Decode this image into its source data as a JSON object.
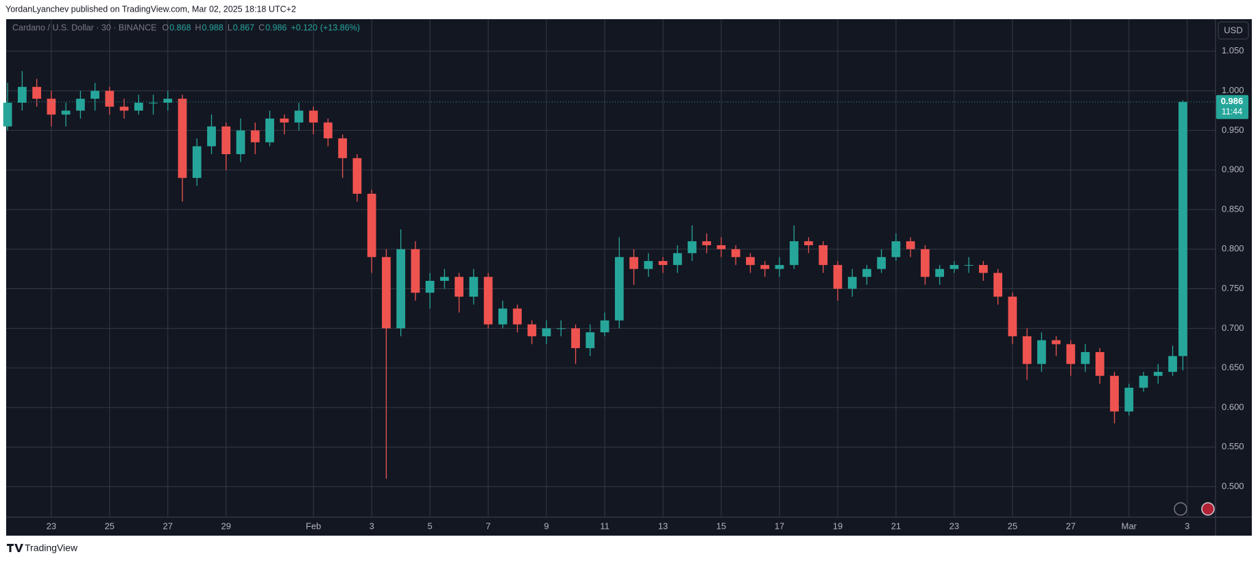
{
  "header": {
    "published": "YordanLyanchev published on TradingView.com, Mar 02, 2025 18:18 UTC+2",
    "footer": "TradingView"
  },
  "chart_data": {
    "type": "candlestick",
    "legend": {
      "symbol": "Cardano / U.S. Dollar · 30 · BINANCE",
      "items": [
        {
          "key": "O",
          "value": 0.868
        },
        {
          "key": "H",
          "value": 0.988
        },
        {
          "key": "L",
          "value": 0.867
        },
        {
          "key": "C",
          "value": 0.986
        }
      ],
      "change": "+0.120",
      "change_pct": "(+13.86%)"
    },
    "currency": "USD",
    "last_price": 0.986,
    "countdown": "11:44",
    "up_color": "#26a69a",
    "down_color": "#ef5350",
    "grid": true,
    "x": [
      -1.5,
      -1,
      -0.5,
      0,
      0.5,
      1,
      1.5,
      2,
      2.5,
      3,
      3.5,
      4,
      4.5,
      5,
      5.5,
      6,
      6.5,
      7,
      7.5,
      8,
      8.5,
      9,
      9.5,
      10,
      10.5,
      11,
      11.5,
      12,
      12.5,
      13,
      13.5,
      14,
      14.5,
      15,
      15.5,
      16,
      16.5,
      17,
      17.5,
      18,
      18.5,
      19,
      19.5,
      20,
      20.5,
      21,
      21.5,
      22,
      22.5,
      23,
      23.5,
      24,
      24.5,
      25,
      25.5,
      26,
      26.5,
      27,
      27.5,
      28,
      28.5,
      29,
      29.5,
      30,
      30.5,
      31,
      31.5,
      32,
      32.5,
      33,
      33.5,
      34,
      34.5,
      35,
      35.5,
      36,
      36.5,
      37,
      37.5,
      38,
      38.5,
      38.85
    ],
    "open": [
      0.955,
      0.985,
      1.005,
      0.99,
      0.97,
      0.975,
      0.99,
      1.0,
      0.98,
      0.975,
      0.985,
      0.985,
      0.99,
      0.89,
      0.93,
      0.955,
      0.92,
      0.95,
      0.935,
      0.965,
      0.96,
      0.975,
      0.96,
      0.94,
      0.915,
      0.87,
      0.79,
      0.7,
      0.8,
      0.745,
      0.76,
      0.765,
      0.74,
      0.765,
      0.705,
      0.725,
      0.705,
      0.69,
      0.7,
      0.7,
      0.675,
      0.695,
      0.71,
      0.79,
      0.775,
      0.785,
      0.78,
      0.795,
      0.81,
      0.805,
      0.8,
      0.79,
      0.78,
      0.775,
      0.78,
      0.81,
      0.805,
      0.78,
      0.75,
      0.765,
      0.775,
      0.79,
      0.81,
      0.8,
      0.765,
      0.775,
      0.78,
      0.78,
      0.77,
      0.74,
      0.69,
      0.655,
      0.685,
      0.68,
      0.655,
      0.67,
      0.64,
      0.595,
      0.625,
      0.64,
      0.645,
      0.665
    ],
    "high": [
      1.01,
      1.025,
      1.015,
      1.0,
      0.985,
      1.0,
      1.01,
      1.005,
      0.99,
      0.995,
      0.995,
      1.0,
      0.995,
      0.94,
      0.97,
      0.96,
      0.965,
      0.96,
      0.975,
      0.97,
      0.985,
      0.98,
      0.965,
      0.945,
      0.92,
      0.875,
      0.8,
      0.825,
      0.81,
      0.77,
      0.775,
      0.77,
      0.775,
      0.77,
      0.735,
      0.73,
      0.71,
      0.71,
      0.71,
      0.705,
      0.705,
      0.72,
      0.815,
      0.8,
      0.795,
      0.79,
      0.805,
      0.83,
      0.82,
      0.815,
      0.805,
      0.795,
      0.785,
      0.79,
      0.83,
      0.815,
      0.81,
      0.785,
      0.775,
      0.78,
      0.8,
      0.82,
      0.815,
      0.805,
      0.78,
      0.785,
      0.79,
      0.785,
      0.775,
      0.745,
      0.7,
      0.695,
      0.69,
      0.685,
      0.68,
      0.675,
      0.645,
      0.63,
      0.645,
      0.655,
      0.678,
      0.988
    ],
    "low": [
      0.95,
      0.975,
      0.98,
      0.955,
      0.955,
      0.965,
      0.975,
      0.97,
      0.965,
      0.97,
      0.97,
      0.975,
      0.86,
      0.88,
      0.92,
      0.9,
      0.91,
      0.92,
      0.93,
      0.945,
      0.95,
      0.945,
      0.93,
      0.89,
      0.86,
      0.77,
      0.51,
      0.69,
      0.735,
      0.725,
      0.75,
      0.72,
      0.73,
      0.7,
      0.7,
      0.695,
      0.68,
      0.68,
      0.69,
      0.655,
      0.665,
      0.69,
      0.7,
      0.755,
      0.765,
      0.77,
      0.77,
      0.785,
      0.795,
      0.79,
      0.78,
      0.77,
      0.765,
      0.765,
      0.775,
      0.795,
      0.77,
      0.735,
      0.74,
      0.755,
      0.77,
      0.785,
      0.79,
      0.755,
      0.755,
      0.77,
      0.77,
      0.76,
      0.73,
      0.68,
      0.635,
      0.645,
      0.665,
      0.64,
      0.645,
      0.63,
      0.58,
      0.59,
      0.62,
      0.63,
      0.64,
      0.647
    ],
    "close": [
      0.985,
      1.005,
      0.99,
      0.97,
      0.975,
      0.99,
      1.0,
      0.98,
      0.975,
      0.985,
      0.985,
      0.99,
      0.89,
      0.93,
      0.955,
      0.92,
      0.95,
      0.935,
      0.965,
      0.96,
      0.975,
      0.96,
      0.94,
      0.915,
      0.87,
      0.79,
      0.7,
      0.8,
      0.745,
      0.76,
      0.765,
      0.74,
      0.765,
      0.705,
      0.725,
      0.705,
      0.69,
      0.7,
      0.7,
      0.675,
      0.695,
      0.71,
      0.79,
      0.775,
      0.785,
      0.78,
      0.795,
      0.81,
      0.805,
      0.8,
      0.79,
      0.78,
      0.775,
      0.78,
      0.81,
      0.805,
      0.78,
      0.75,
      0.765,
      0.775,
      0.79,
      0.81,
      0.8,
      0.765,
      0.775,
      0.78,
      0.78,
      0.77,
      0.74,
      0.69,
      0.655,
      0.685,
      0.68,
      0.655,
      0.67,
      0.64,
      0.595,
      0.625,
      0.64,
      0.645,
      0.665,
      0.986
    ],
    "xlim": [
      -1.55,
      39.97
    ],
    "ylim": [
      0.4615,
      1.0905
    ],
    "xticks": [
      {
        "value": 0,
        "label": "23"
      },
      {
        "value": 2,
        "label": "25"
      },
      {
        "value": 4,
        "label": "27"
      },
      {
        "value": 6,
        "label": "29"
      },
      {
        "value": 9,
        "label": "Feb"
      },
      {
        "value": 11,
        "label": "3"
      },
      {
        "value": 13,
        "label": "5"
      },
      {
        "value": 15,
        "label": "7"
      },
      {
        "value": 17,
        "label": "9"
      },
      {
        "value": 19,
        "label": "11"
      },
      {
        "value": 21,
        "label": "13"
      },
      {
        "value": 23,
        "label": "15"
      },
      {
        "value": 25,
        "label": "17"
      },
      {
        "value": 27,
        "label": "19"
      },
      {
        "value": 29,
        "label": "21"
      },
      {
        "value": 31,
        "label": "23"
      },
      {
        "value": 33,
        "label": "25"
      },
      {
        "value": 35,
        "label": "27"
      },
      {
        "value": 37,
        "label": "Mar"
      },
      {
        "value": 39,
        "label": "3"
      }
    ],
    "yticks": [
      {
        "value": 0.5,
        "label": "0.500"
      },
      {
        "value": 0.55,
        "label": "0.550"
      },
      {
        "value": 0.6,
        "label": "0.600"
      },
      {
        "value": 0.65,
        "label": "0.650"
      },
      {
        "value": 0.7,
        "label": "0.700"
      },
      {
        "value": 0.75,
        "label": "0.750"
      },
      {
        "value": 0.8,
        "label": "0.800"
      },
      {
        "value": 0.85,
        "label": "0.850"
      },
      {
        "value": 0.9,
        "label": "0.900"
      },
      {
        "value": 0.95,
        "label": "0.950"
      },
      {
        "value": 1.0,
        "label": "1.000"
      },
      {
        "value": 1.05,
        "label": "1.050"
      }
    ]
  }
}
